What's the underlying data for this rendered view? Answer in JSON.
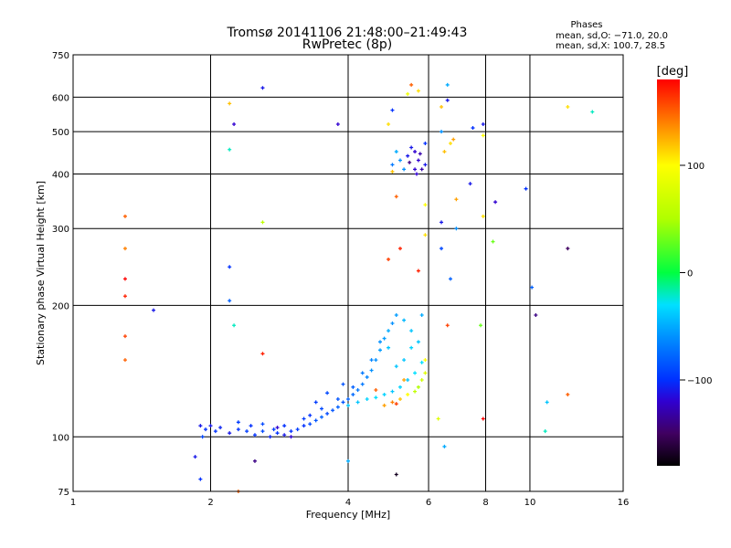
{
  "chart_data": {
    "type": "scatter",
    "title": "Tromsø 20141106 21:48:00–21:49:43",
    "subtitle": "RwPretec (8p)",
    "stats": {
      "heading": "Phases",
      "o_line": "mean, sd,O: −71.0, 20.0",
      "x_line": "mean, sd,X: 100.7, 28.5"
    },
    "xlabel": "Frequency [MHz]",
    "ylabel": "Stationary phase Virtual Height [km]",
    "xscale": "log",
    "yscale": "log",
    "xlim": [
      1,
      16
    ],
    "ylim": [
      75,
      750
    ],
    "xticks": [
      1,
      2,
      4,
      6,
      8,
      10,
      16
    ],
    "xtick_labels": [
      "1",
      "2",
      "4",
      "6",
      "8",
      "10",
      "16"
    ],
    "yticks": [
      75,
      100,
      200,
      300,
      400,
      500,
      600,
      750
    ],
    "ytick_labels": [
      "75",
      "100",
      "200",
      "300",
      "400",
      "500",
      "600",
      "750"
    ],
    "xgrid": [
      2,
      4,
      6,
      8,
      10
    ],
    "ygrid": [
      100,
      200,
      300,
      400,
      500,
      600
    ],
    "colorbar": {
      "label": "[deg]",
      "range": [
        -180,
        180
      ],
      "ticks": [
        100,
        0,
        -100
      ],
      "tick_labels": [
        "100",
        "0",
        "−100"
      ],
      "stops": [
        [
          -180,
          "#000000"
        ],
        [
          -150,
          "#400060"
        ],
        [
          -120,
          "#3000d0"
        ],
        [
          -100,
          "#0030ff"
        ],
        [
          -60,
          "#0090ff"
        ],
        [
          -30,
          "#00e0ff"
        ],
        [
          0,
          "#00ff40"
        ],
        [
          50,
          "#b0ff00"
        ],
        [
          100,
          "#ffff00"
        ],
        [
          140,
          "#ff8000"
        ],
        [
          180,
          "#ff0000"
        ]
      ]
    },
    "points_fields": [
      "frequency_mhz",
      "height_km",
      "phase_deg"
    ],
    "points": [
      [
        1.9,
        106,
        -110
      ],
      [
        1.95,
        104,
        -100
      ],
      [
        2.0,
        106,
        -110
      ],
      [
        2.05,
        103,
        -100
      ],
      [
        2.1,
        105,
        -105
      ],
      [
        1.92,
        100,
        -90
      ],
      [
        2.3,
        104,
        -100
      ],
      [
        2.4,
        103,
        -95
      ],
      [
        2.5,
        101,
        -100
      ],
      [
        2.6,
        103,
        -90
      ],
      [
        2.7,
        100,
        -105
      ],
      [
        2.8,
        102,
        -100
      ],
      [
        2.9,
        101,
        -110
      ],
      [
        3.0,
        103,
        -100
      ],
      [
        3.1,
        104,
        -95
      ],
      [
        3.2,
        106,
        -100
      ],
      [
        3.3,
        107,
        -90
      ],
      [
        3.4,
        109,
        -85
      ],
      [
        3.5,
        111,
        -80
      ],
      [
        3.6,
        113,
        -90
      ],
      [
        3.7,
        115,
        -85
      ],
      [
        3.8,
        117,
        -80
      ],
      [
        3.9,
        120,
        -85
      ],
      [
        4.0,
        122,
        -80
      ],
      [
        4.1,
        125,
        -75
      ],
      [
        4.2,
        128,
        -70
      ],
      [
        4.3,
        132,
        -70
      ],
      [
        4.4,
        137,
        -65
      ],
      [
        4.5,
        142,
        -60
      ],
      [
        4.6,
        150,
        -60
      ],
      [
        4.7,
        158,
        -55
      ],
      [
        4.8,
        168,
        -55
      ],
      [
        4.9,
        175,
        -50
      ],
      [
        5.0,
        182,
        -60
      ],
      [
        5.1,
        190,
        -55
      ],
      [
        5.3,
        185,
        -45
      ],
      [
        5.5,
        175,
        -40
      ],
      [
        5.7,
        165,
        -40
      ],
      [
        5.8,
        190,
        -50
      ],
      [
        2.3,
        108,
        -95
      ],
      [
        2.6,
        107,
        -90
      ],
      [
        2.9,
        106,
        -100
      ],
      [
        3.2,
        110,
        -95
      ],
      [
        3.5,
        116,
        -90
      ],
      [
        3.8,
        122,
        -85
      ],
      [
        4.1,
        130,
        -80
      ],
      [
        3.4,
        120,
        -95
      ],
      [
        3.6,
        126,
        -90
      ],
      [
        3.9,
        132,
        -85
      ],
      [
        2.2,
        102,
        -110
      ],
      [
        2.8,
        105,
        -120
      ],
      [
        3.0,
        100,
        -120
      ],
      [
        2.45,
        106,
        -100
      ],
      [
        2.75,
        104,
        -95
      ],
      [
        3.3,
        112,
        -100
      ],
      [
        4.3,
        140,
        -70
      ],
      [
        4.5,
        150,
        -65
      ],
      [
        4.7,
        165,
        -60
      ],
      [
        4.0,
        118,
        -40
      ],
      [
        4.2,
        120,
        -40
      ],
      [
        4.4,
        122,
        -35
      ],
      [
        4.6,
        123,
        -30
      ],
      [
        4.8,
        125,
        -35
      ],
      [
        5.0,
        127,
        -40
      ],
      [
        5.2,
        130,
        -35
      ],
      [
        5.4,
        135,
        -40
      ],
      [
        5.6,
        140,
        -30
      ],
      [
        5.8,
        148,
        -30
      ],
      [
        5.1,
        145,
        -40
      ],
      [
        5.3,
        150,
        -40
      ],
      [
        5.5,
        160,
        -35
      ],
      [
        4.9,
        160,
        -40
      ],
      [
        4.8,
        118,
        130
      ],
      [
        5.0,
        120,
        140
      ],
      [
        5.2,
        122,
        120
      ],
      [
        5.4,
        125,
        100
      ],
      [
        5.6,
        127,
        60
      ],
      [
        5.7,
        130,
        50
      ],
      [
        5.8,
        135,
        70
      ],
      [
        5.9,
        140,
        80
      ],
      [
        5.9,
        150,
        100
      ],
      [
        5.3,
        135,
        130
      ],
      [
        4.6,
        128,
        150
      ],
      [
        5.1,
        119,
        160
      ],
      [
        5.0,
        420,
        -70
      ],
      [
        5.2,
        430,
        -60
      ],
      [
        5.4,
        440,
        -110
      ],
      [
        5.6,
        450,
        -120
      ],
      [
        5.7,
        430,
        -120
      ],
      [
        5.8,
        410,
        -130
      ],
      [
        5.9,
        420,
        -110
      ],
      [
        5.6,
        410,
        -120
      ],
      [
        5.5,
        460,
        -110
      ],
      [
        5.9,
        470,
        -100
      ],
      [
        5.1,
        450,
        -50
      ],
      [
        5.3,
        410,
        -60
      ],
      [
        5.0,
        405,
        120
      ],
      [
        4.9,
        520,
        110
      ],
      [
        5.0,
        560,
        -100
      ],
      [
        5.45,
        425,
        -140
      ],
      [
        5.75,
        445,
        -130
      ],
      [
        5.65,
        400,
        -120
      ],
      [
        6.4,
        500,
        -60
      ],
      [
        6.5,
        450,
        120
      ],
      [
        6.7,
        470,
        110
      ],
      [
        6.8,
        480,
        130
      ],
      [
        6.6,
        590,
        -110
      ],
      [
        7.5,
        510,
        -100
      ],
      [
        7.9,
        520,
        -110
      ],
      [
        7.9,
        490,
        100
      ],
      [
        6.4,
        570,
        120
      ],
      [
        6.6,
        640,
        -50
      ],
      [
        5.5,
        640,
        150
      ],
      [
        5.7,
        620,
        110
      ],
      [
        5.4,
        610,
        90
      ],
      [
        1.3,
        320,
        150
      ],
      [
        1.3,
        270,
        140
      ],
      [
        1.3,
        230,
        180
      ],
      [
        1.3,
        210,
        170
      ],
      [
        1.3,
        170,
        160
      ],
      [
        1.3,
        150,
        150
      ],
      [
        1.5,
        195,
        -110
      ],
      [
        2.2,
        580,
        120
      ],
      [
        2.25,
        520,
        -120
      ],
      [
        2.2,
        455,
        -20
      ],
      [
        2.6,
        630,
        -110
      ],
      [
        2.6,
        310,
        60
      ],
      [
        2.2,
        245,
        -100
      ],
      [
        2.2,
        205,
        -80
      ],
      [
        2.25,
        180,
        -20
      ],
      [
        2.6,
        155,
        170
      ],
      [
        3.8,
        520,
        -120
      ],
      [
        5.1,
        355,
        150
      ],
      [
        5.9,
        340,
        100
      ],
      [
        5.9,
        290,
        110
      ],
      [
        5.7,
        240,
        170
      ],
      [
        5.2,
        270,
        170
      ],
      [
        4.9,
        255,
        160
      ],
      [
        6.9,
        350,
        130
      ],
      [
        7.4,
        380,
        -110
      ],
      [
        7.9,
        320,
        110
      ],
      [
        8.3,
        280,
        30
      ],
      [
        8.4,
        345,
        -120
      ],
      [
        9.8,
        370,
        -100
      ],
      [
        6.4,
        310,
        -110
      ],
      [
        6.9,
        300,
        -60
      ],
      [
        6.4,
        270,
        -90
      ],
      [
        6.7,
        230,
        -80
      ],
      [
        6.6,
        180,
        160
      ],
      [
        7.8,
        180,
        30
      ],
      [
        10.1,
        220,
        -80
      ],
      [
        10.3,
        190,
        -140
      ],
      [
        10.9,
        120,
        -40
      ],
      [
        12.1,
        125,
        150
      ],
      [
        12.1,
        570,
        110
      ],
      [
        13.7,
        555,
        -20
      ],
      [
        12.1,
        270,
        -150
      ],
      [
        6.3,
        110,
        80
      ],
      [
        7.9,
        110,
        180
      ],
      [
        6.5,
        95,
        -50
      ],
      [
        4.0,
        88,
        -50
      ],
      [
        5.1,
        82,
        -170
      ],
      [
        1.85,
        90,
        -110
      ],
      [
        1.9,
        80,
        -100
      ],
      [
        2.3,
        75,
        150
      ],
      [
        2.5,
        88,
        -140
      ],
      [
        10.8,
        103,
        -20
      ]
    ]
  }
}
